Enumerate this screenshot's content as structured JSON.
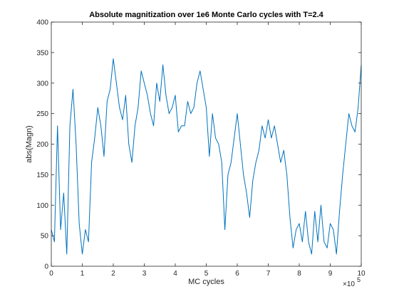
{
  "chart_data": {
    "type": "line",
    "title": "Absolute magnitization over 1e6 Monte Carlo cycles with T=2.4",
    "xlabel": "MC cycles",
    "ylabel": "abs(Magn)",
    "x_multiplier": "×10",
    "x_multiplier_exponent": "5",
    "xlim": [
      0,
      10
    ],
    "ylim": [
      0,
      400
    ],
    "xticks": [
      "0",
      "1",
      "2",
      "3",
      "4",
      "5",
      "6",
      "7",
      "8",
      "9",
      "10"
    ],
    "yticks": [
      "0",
      "50",
      "100",
      "150",
      "200",
      "250",
      "300",
      "350",
      "400"
    ],
    "grid": false,
    "line_color": "#0072BD",
    "series": [
      {
        "x": [
          0,
          0.1,
          0.2,
          0.3,
          0.4,
          0.5,
          0.6,
          0.7,
          0.8,
          0.9,
          1.0,
          1.1,
          1.2,
          1.3,
          1.4,
          1.5,
          1.6,
          1.7,
          1.8,
          1.9,
          2.0,
          2.1,
          2.2,
          2.3,
          2.4,
          2.5,
          2.6,
          2.7,
          2.8,
          2.9,
          3.0,
          3.1,
          3.2,
          3.3,
          3.4,
          3.5,
          3.6,
          3.7,
          3.8,
          3.9,
          4.0,
          4.1,
          4.2,
          4.3,
          4.4,
          4.5,
          4.6,
          4.7,
          4.8,
          4.9,
          5.0,
          5.1,
          5.2,
          5.3,
          5.4,
          5.5,
          5.6,
          5.7,
          5.8,
          5.9,
          6.0,
          6.1,
          6.2,
          6.3,
          6.4,
          6.5,
          6.6,
          6.7,
          6.8,
          6.9,
          7.0,
          7.1,
          7.2,
          7.3,
          7.4,
          7.5,
          7.6,
          7.7,
          7.8,
          7.9,
          8.0,
          8.1,
          8.2,
          8.3,
          8.4,
          8.5,
          8.6,
          8.7,
          8.8,
          8.9,
          9.0,
          9.1,
          9.2,
          9.3,
          9.4,
          9.5,
          9.6,
          9.7,
          9.8,
          9.9,
          10.0
        ],
        "values": [
          60,
          40,
          230,
          60,
          120,
          20,
          230,
          290,
          200,
          70,
          20,
          60,
          40,
          170,
          210,
          260,
          230,
          180,
          270,
          290,
          340,
          300,
          260,
          240,
          280,
          200,
          170,
          230,
          260,
          320,
          300,
          280,
          250,
          230,
          300,
          270,
          330,
          280,
          250,
          260,
          280,
          220,
          230,
          230,
          270,
          250,
          260,
          300,
          320,
          290,
          260,
          180,
          250,
          210,
          200,
          170,
          60,
          150,
          170,
          210,
          250,
          200,
          150,
          120,
          80,
          140,
          170,
          190,
          230,
          210,
          240,
          210,
          230,
          200,
          170,
          190,
          150,
          80,
          30,
          60,
          70,
          40,
          90,
          40,
          20,
          90,
          40,
          100,
          40,
          30,
          70,
          60,
          20,
          90,
          150,
          200,
          250,
          230,
          220,
          260,
          330
        ]
      }
    ]
  }
}
